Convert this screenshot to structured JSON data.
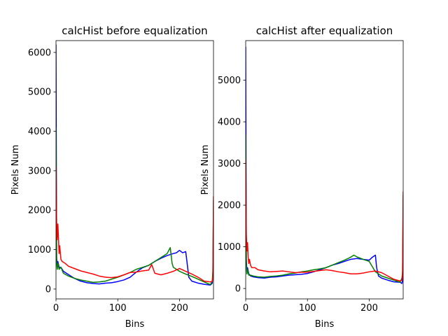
{
  "colors": {
    "blue": "#0000ff",
    "green": "#008000",
    "red": "#ff0000",
    "axis": "#000000",
    "background": "#ffffff"
  },
  "chart_data": [
    {
      "type": "line",
      "title": "calcHist before equalization",
      "xlabel": "Bins",
      "ylabel": "Pixels Num",
      "xlim": [
        0,
        255
      ],
      "ylim": [
        -250,
        6300
      ],
      "xticks": [
        0,
        100,
        200
      ],
      "yticks": [
        0,
        1000,
        2000,
        3000,
        4000,
        5000,
        6000
      ],
      "grid": false,
      "series": [
        {
          "color": "blue",
          "x": [
            0,
            1,
            2,
            3,
            5,
            8,
            12,
            20,
            30,
            40,
            50,
            60,
            70,
            80,
            90,
            100,
            110,
            120,
            130,
            140,
            150,
            160,
            170,
            180,
            190,
            195,
            200,
            205,
            210,
            212,
            215,
            220,
            230,
            240,
            250,
            253,
            254,
            255
          ],
          "y": [
            6200,
            800,
            550,
            700,
            550,
            550,
            450,
            370,
            270,
            200,
            160,
            140,
            130,
            150,
            160,
            190,
            230,
            300,
            430,
            540,
            600,
            700,
            780,
            850,
            900,
            920,
            980,
            920,
            950,
            700,
            300,
            200,
            150,
            120,
            100,
            150,
            300,
            900
          ]
        },
        {
          "color": "green",
          "x": [
            0,
            1,
            2,
            3,
            5,
            8,
            12,
            20,
            30,
            40,
            50,
            60,
            70,
            80,
            90,
            100,
            110,
            120,
            130,
            140,
            150,
            160,
            170,
            180,
            185,
            188,
            190,
            200,
            210,
            220,
            230,
            240,
            250,
            253,
            254,
            255
          ],
          "y": [
            4100,
            700,
            500,
            650,
            500,
            550,
            400,
            330,
            270,
            230,
            200,
            170,
            180,
            200,
            250,
            300,
            360,
            420,
            500,
            550,
            600,
            700,
            800,
            900,
            1050,
            650,
            550,
            450,
            380,
            320,
            250,
            180,
            110,
            200,
            450,
            2250
          ]
        },
        {
          "color": "red",
          "x": [
            0,
            1,
            2,
            3,
            4,
            5,
            6,
            8,
            10,
            15,
            20,
            30,
            40,
            50,
            60,
            70,
            80,
            90,
            100,
            110,
            120,
            130,
            140,
            150,
            155,
            160,
            165,
            170,
            180,
            190,
            200,
            210,
            220,
            230,
            240,
            250,
            253,
            254,
            255
          ],
          "y": [
            3100,
            1700,
            1250,
            1650,
            1300,
            900,
            1100,
            750,
            700,
            650,
            580,
            520,
            460,
            420,
            380,
            330,
            300,
            290,
            310,
            360,
            420,
            430,
            460,
            480,
            620,
            400,
            380,
            360,
            400,
            450,
            520,
            450,
            380,
            300,
            200,
            180,
            200,
            300,
            2350
          ]
        }
      ]
    },
    {
      "type": "line",
      "title": "calcHist after equalization",
      "xlabel": "Bins",
      "ylabel": "Pixels Num",
      "xlim": [
        0,
        255
      ],
      "ylim": [
        -250,
        5950
      ],
      "xticks": [
        0,
        100,
        200
      ],
      "yticks": [
        0,
        1000,
        2000,
        3000,
        4000,
        5000
      ],
      "grid": false,
      "series": [
        {
          "color": "blue",
          "x": [
            0,
            1,
            2,
            3,
            5,
            8,
            12,
            20,
            30,
            40,
            50,
            60,
            70,
            80,
            90,
            100,
            110,
            120,
            130,
            140,
            150,
            160,
            170,
            180,
            190,
            200,
            205,
            210,
            212,
            215,
            220,
            230,
            240,
            250,
            253,
            254,
            255
          ],
          "y": [
            5800,
            700,
            400,
            500,
            350,
            300,
            280,
            260,
            250,
            270,
            280,
            300,
            320,
            330,
            340,
            360,
            400,
            450,
            500,
            560,
            600,
            650,
            700,
            720,
            700,
            680,
            750,
            800,
            500,
            300,
            250,
            200,
            160,
            150,
            120,
            200,
            300
          ]
        },
        {
          "color": "green",
          "x": [
            0,
            1,
            2,
            3,
            5,
            8,
            12,
            20,
            30,
            40,
            50,
            60,
            70,
            80,
            90,
            100,
            110,
            120,
            130,
            140,
            150,
            160,
            170,
            175,
            180,
            190,
            200,
            210,
            220,
            230,
            240,
            250,
            253,
            254,
            255
          ],
          "y": [
            3700,
            600,
            350,
            450,
            320,
            320,
            300,
            280,
            270,
            290,
            300,
            320,
            350,
            370,
            400,
            420,
            450,
            470,
            500,
            560,
            620,
            680,
            750,
            800,
            760,
            700,
            650,
            400,
            300,
            250,
            200,
            150,
            250,
            400,
            2250
          ]
        },
        {
          "color": "red",
          "x": [
            0,
            1,
            2,
            3,
            4,
            5,
            6,
            8,
            10,
            15,
            20,
            30,
            40,
            50,
            60,
            70,
            80,
            90,
            100,
            110,
            120,
            130,
            140,
            150,
            160,
            170,
            180,
            190,
            200,
            210,
            220,
            230,
            240,
            250,
            253,
            254,
            255
          ],
          "y": [
            3100,
            1300,
            900,
            1100,
            750,
            600,
            700,
            550,
            500,
            500,
            450,
            420,
            400,
            410,
            420,
            400,
            380,
            390,
            390,
            410,
            430,
            450,
            430,
            400,
            380,
            350,
            350,
            370,
            400,
            420,
            380,
            300,
            220,
            180,
            200,
            350,
            2330
          ]
        }
      ]
    }
  ]
}
